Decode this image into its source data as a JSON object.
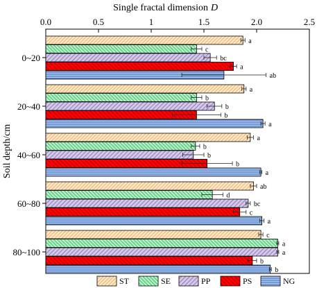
{
  "chart_data": {
    "type": "bar",
    "orientation": "horizontal",
    "title": "Single fractal dimension D",
    "title_plain": "Single fractal dimension",
    "title_italic": "D",
    "xlabel": "",
    "ylabel": "Soil depth/cm",
    "xlim": [
      0.0,
      2.5
    ],
    "xticks": [
      0.0,
      0.5,
      1.0,
      1.5,
      2.0,
      2.5
    ],
    "xtick_labels": [
      "0.0",
      "0.5",
      "1",
      "1.5",
      "2.0",
      "2.5"
    ],
    "x_axis_position": "top",
    "grid": false,
    "legend_position": "bottom",
    "categories": [
      "0~20",
      "20~40",
      "40~60",
      "60~80",
      "80~100"
    ],
    "series": [
      {
        "name": "ST",
        "color": "#f5c98e",
        "pattern": "diag-forward",
        "values": [
          1.87,
          1.88,
          1.94,
          1.97,
          2.04
        ],
        "errors": [
          0.02,
          0.02,
          0.03,
          0.03,
          0.02
        ],
        "labels": [
          "a",
          "a",
          "a",
          "ab",
          "c"
        ]
      },
      {
        "name": "SE",
        "color": "#69d98a",
        "pattern": "diag-back",
        "values": [
          1.43,
          1.43,
          1.42,
          1.58,
          2.2
        ],
        "errors": [
          0.05,
          0.05,
          0.04,
          0.1,
          0.01
        ],
        "labels": [
          "c",
          "b",
          "b",
          "d",
          "a"
        ]
      },
      {
        "name": "PP",
        "color": "#d5c8ea",
        "pattern": "diag-forward",
        "values": [
          1.56,
          1.6,
          1.4,
          1.92,
          2.2
        ],
        "errors": [
          0.06,
          0.07,
          0.1,
          0.02,
          0.01
        ],
        "labels": [
          "bc",
          "b",
          "b",
          "bc",
          "a"
        ]
      },
      {
        "name": "PS",
        "color": "#ff0000",
        "pattern": "diag-back",
        "values": [
          1.78,
          1.43,
          1.53,
          1.84,
          1.96
        ],
        "errors": [
          0.03,
          0.23,
          0.24,
          0.06,
          0.04
        ],
        "labels": [
          "a",
          "b",
          "b",
          "c",
          "b"
        ]
      },
      {
        "name": "NG",
        "color": "#a9c5ee",
        "pattern": "horizontal",
        "values": [
          1.69,
          2.06,
          2.04,
          2.05,
          2.13
        ],
        "errors": [
          0.4,
          0.02,
          0.01,
          0.02,
          0.01
        ],
        "labels": [
          "ab",
          "a",
          "a",
          "a",
          "b"
        ]
      }
    ]
  }
}
